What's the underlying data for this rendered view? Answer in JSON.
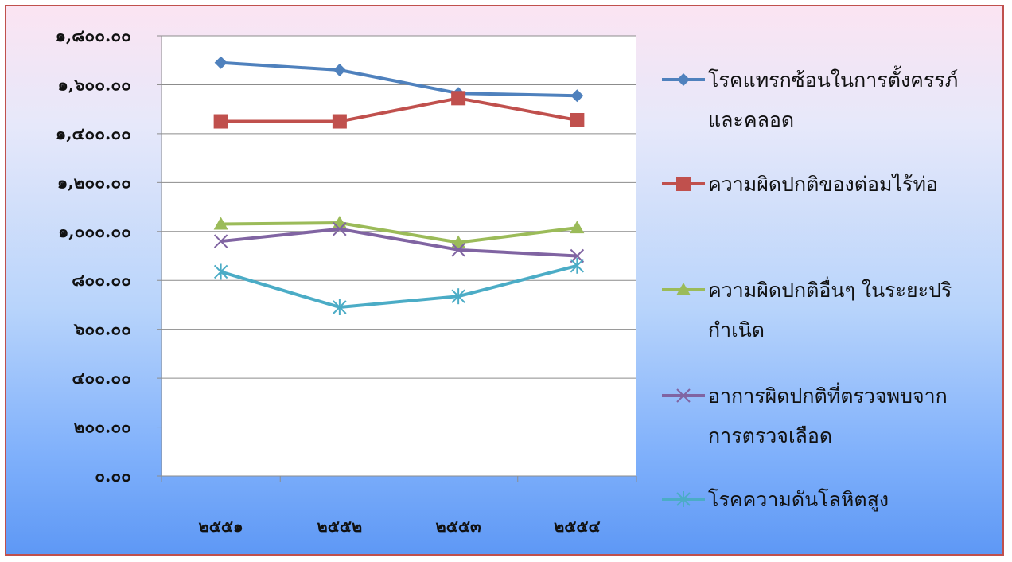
{
  "chart_data": {
    "type": "line",
    "categories": [
      "๒๕๕๑",
      "๒๕๕๒",
      "๒๕๕๓",
      "๒๕๕๔"
    ],
    "ylim": [
      0,
      1800
    ],
    "yticks": [
      {
        "value": 0,
        "label": "๐.๐๐"
      },
      {
        "value": 200,
        "label": "๒๐๐.๐๐"
      },
      {
        "value": 400,
        "label": "๔๐๐.๐๐"
      },
      {
        "value": 600,
        "label": "๖๐๐.๐๐"
      },
      {
        "value": 800,
        "label": "๘๐๐.๐๐"
      },
      {
        "value": 1000,
        "label": "๑,๐๐๐.๐๐"
      },
      {
        "value": 1200,
        "label": "๑,๒๐๐.๐๐"
      },
      {
        "value": 1400,
        "label": "๑,๔๐๐.๐๐"
      },
      {
        "value": 1600,
        "label": "๑,๖๐๐.๐๐"
      },
      {
        "value": 1800,
        "label": "๑,๘๐๐.๐๐"
      }
    ],
    "grid": true,
    "legend_position": "right",
    "series": [
      {
        "name": "โรคแทรกซ้อนในการตั้งครรภ์และคลอด",
        "legend_lines": [
          "โรคแทรกซ้อนในการตั้งครรภ์",
          "และคลอด"
        ],
        "color": "#4f81bd",
        "marker": "diamond",
        "values": [
          1690,
          1660,
          1565,
          1555
        ]
      },
      {
        "name": "ความผิดปกติของต่อมไร้ท่อ",
        "legend_lines": [
          "ความผิดปกติของต่อมไร้ท่อ"
        ],
        "color": "#c0504d",
        "marker": "square",
        "values": [
          1450,
          1450,
          1545,
          1455
        ]
      },
      {
        "name": "ความผิดปกติอื่นๆ ในระยะปริกำเนิด",
        "legend_lines": [
          "ความผิดปกติอื่นๆ ในระยะปริ",
          "กำเนิด"
        ],
        "color": "#9bbb59",
        "marker": "triangle",
        "values": [
          1030,
          1035,
          955,
          1015
        ]
      },
      {
        "name": "อาการผิดปกติที่ตรวจพบจากการตรวจเลือด",
        "legend_lines": [
          "อาการผิดปกติที่ตรวจพบจาก",
          "การตรวจเลือด"
        ],
        "color": "#8064a2",
        "marker": "x",
        "values": [
          960,
          1010,
          925,
          900
        ]
      },
      {
        "name": "โรคความดันโลหิตสูง",
        "legend_lines": [
          "โรคความดันโลหิตสูง"
        ],
        "color": "#4bacc6",
        "marker": "star",
        "values": [
          835,
          690,
          735,
          860
        ]
      }
    ]
  }
}
